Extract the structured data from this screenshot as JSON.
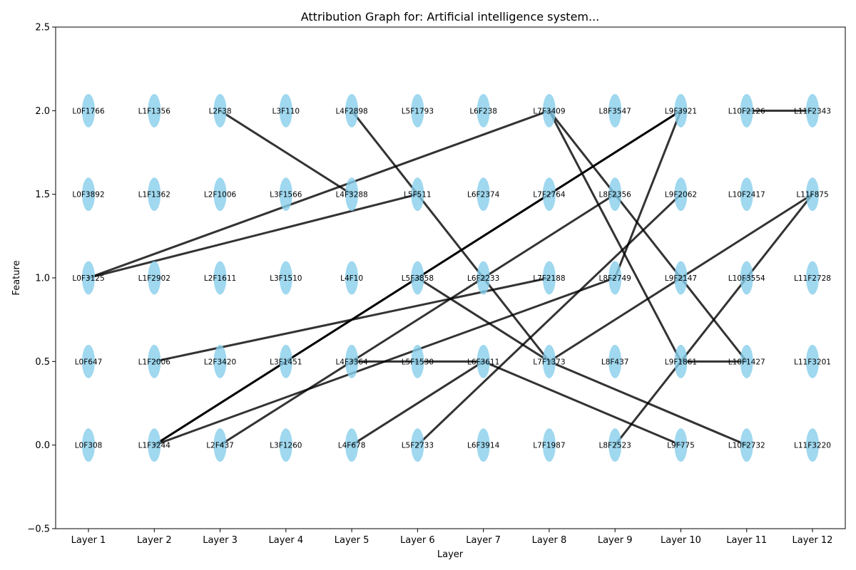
{
  "chart_data": {
    "type": "scatter",
    "title": "Attribution Graph for: Artificial intelligence system...",
    "xlabel": "Layer",
    "ylabel": "Feature",
    "categories": [
      "Layer 1",
      "Layer 2",
      "Layer 3",
      "Layer 4",
      "Layer 5",
      "Layer 6",
      "Layer 7",
      "Layer 8",
      "Layer 9",
      "Layer 10",
      "Layer 11",
      "Layer 12"
    ],
    "ylim": [
      -0.5,
      2.5
    ],
    "yticks": [
      "−0.5",
      "0.0",
      "0.5",
      "1.0",
      "1.5",
      "2.0",
      "2.5"
    ],
    "ytick_values": [
      -0.5,
      0.0,
      0.5,
      1.0,
      1.5,
      2.0,
      2.5
    ],
    "grid": false,
    "node_color": "#87ceeb",
    "edge_color": "#000000",
    "nodes": [
      {
        "layer": 1,
        "y": 2.0,
        "label": "L0F1766"
      },
      {
        "layer": 1,
        "y": 1.5,
        "label": "L0F3892"
      },
      {
        "layer": 1,
        "y": 1.0,
        "label": "L0F3125"
      },
      {
        "layer": 1,
        "y": 0.5,
        "label": "L0F647"
      },
      {
        "layer": 1,
        "y": 0.0,
        "label": "L0F308"
      },
      {
        "layer": 2,
        "y": 2.0,
        "label": "L1F1356"
      },
      {
        "layer": 2,
        "y": 1.5,
        "label": "L1F1362"
      },
      {
        "layer": 2,
        "y": 1.0,
        "label": "L1F2902"
      },
      {
        "layer": 2,
        "y": 0.5,
        "label": "L1F2006"
      },
      {
        "layer": 2,
        "y": 0.0,
        "label": "L1F3244"
      },
      {
        "layer": 3,
        "y": 2.0,
        "label": "L2F38"
      },
      {
        "layer": 3,
        "y": 1.5,
        "label": "L2F1006"
      },
      {
        "layer": 3,
        "y": 1.0,
        "label": "L2F1611"
      },
      {
        "layer": 3,
        "y": 0.5,
        "label": "L2F3420"
      },
      {
        "layer": 3,
        "y": 0.0,
        "label": "L2F437"
      },
      {
        "layer": 4,
        "y": 2.0,
        "label": "L3F110"
      },
      {
        "layer": 4,
        "y": 1.5,
        "label": "L3F1566"
      },
      {
        "layer": 4,
        "y": 1.0,
        "label": "L3F1510"
      },
      {
        "layer": 4,
        "y": 0.5,
        "label": "L3F1451"
      },
      {
        "layer": 4,
        "y": 0.0,
        "label": "L3F1260"
      },
      {
        "layer": 5,
        "y": 2.0,
        "label": "L4F2898"
      },
      {
        "layer": 5,
        "y": 1.5,
        "label": "L4F3288"
      },
      {
        "layer": 5,
        "y": 1.0,
        "label": "L4F10"
      },
      {
        "layer": 5,
        "y": 0.5,
        "label": "L4F3364"
      },
      {
        "layer": 5,
        "y": 0.0,
        "label": "L4F678"
      },
      {
        "layer": 6,
        "y": 2.0,
        "label": "L5F1793"
      },
      {
        "layer": 6,
        "y": 1.5,
        "label": "L5F511"
      },
      {
        "layer": 6,
        "y": 1.0,
        "label": "L5F3858"
      },
      {
        "layer": 6,
        "y": 0.5,
        "label": "L5F1530"
      },
      {
        "layer": 6,
        "y": 0.0,
        "label": "L5F2733"
      },
      {
        "layer": 7,
        "y": 2.0,
        "label": "L6F238"
      },
      {
        "layer": 7,
        "y": 1.5,
        "label": "L6F2374"
      },
      {
        "layer": 7,
        "y": 1.0,
        "label": "L6F2233"
      },
      {
        "layer": 7,
        "y": 0.5,
        "label": "L6F3611"
      },
      {
        "layer": 7,
        "y": 0.0,
        "label": "L6F3914"
      },
      {
        "layer": 8,
        "y": 2.0,
        "label": "L7F3409"
      },
      {
        "layer": 8,
        "y": 1.5,
        "label": "L7F2764"
      },
      {
        "layer": 8,
        "y": 1.0,
        "label": "L7F2188"
      },
      {
        "layer": 8,
        "y": 0.5,
        "label": "L7F1373"
      },
      {
        "layer": 8,
        "y": 0.0,
        "label": "L7F1987"
      },
      {
        "layer": 9,
        "y": 2.0,
        "label": "L8F3547"
      },
      {
        "layer": 9,
        "y": 1.5,
        "label": "L8F2356"
      },
      {
        "layer": 9,
        "y": 1.0,
        "label": "L8F2749"
      },
      {
        "layer": 9,
        "y": 0.5,
        "label": "L8F437"
      },
      {
        "layer": 9,
        "y": 0.0,
        "label": "L8F2523"
      },
      {
        "layer": 10,
        "y": 2.0,
        "label": "L9F3921"
      },
      {
        "layer": 10,
        "y": 1.5,
        "label": "L9F2062"
      },
      {
        "layer": 10,
        "y": 1.0,
        "label": "L9F2147"
      },
      {
        "layer": 10,
        "y": 0.5,
        "label": "L9F1861"
      },
      {
        "layer": 10,
        "y": 0.0,
        "label": "L9F775"
      },
      {
        "layer": 11,
        "y": 2.0,
        "label": "L10F2126"
      },
      {
        "layer": 11,
        "y": 1.5,
        "label": "L10F2417"
      },
      {
        "layer": 11,
        "y": 1.0,
        "label": "L10F3554"
      },
      {
        "layer": 11,
        "y": 0.5,
        "label": "L10F1427"
      },
      {
        "layer": 11,
        "y": 0.0,
        "label": "L10F2732"
      },
      {
        "layer": 12,
        "y": 2.0,
        "label": "L11F2343"
      },
      {
        "layer": 12,
        "y": 1.5,
        "label": "L11F875"
      },
      {
        "layer": 12,
        "y": 1.0,
        "label": "L11F2728"
      },
      {
        "layer": 12,
        "y": 0.5,
        "label": "L11F3201"
      },
      {
        "layer": 12,
        "y": 0.0,
        "label": "L11F3220"
      }
    ],
    "edges": [
      {
        "from": [
          1,
          1.0
        ],
        "to": [
          8,
          2.0
        ],
        "w": 0.8
      },
      {
        "from": [
          1,
          1.0
        ],
        "to": [
          6,
          1.5
        ],
        "w": 0.8
      },
      {
        "from": [
          2,
          0.5
        ],
        "to": [
          8,
          1.0
        ],
        "w": 0.8
      },
      {
        "from": [
          2,
          0.0
        ],
        "to": [
          10,
          2.0
        ],
        "w": 1.0
      },
      {
        "from": [
          2,
          0.0
        ],
        "to": [
          9,
          1.0
        ],
        "w": 0.8
      },
      {
        "from": [
          3,
          2.0
        ],
        "to": [
          5,
          1.5
        ],
        "w": 0.8
      },
      {
        "from": [
          3,
          0.0
        ],
        "to": [
          9,
          1.5
        ],
        "w": 0.8
      },
      {
        "from": [
          5,
          2.0
        ],
        "to": [
          8,
          0.5
        ],
        "w": 0.8
      },
      {
        "from": [
          5,
          0.5
        ],
        "to": [
          7,
          0.5
        ],
        "w": 0.8
      },
      {
        "from": [
          5,
          0.0
        ],
        "to": [
          7,
          0.5
        ],
        "w": 0.8
      },
      {
        "from": [
          6,
          1.0
        ],
        "to": [
          8,
          0.5
        ],
        "w": 0.8
      },
      {
        "from": [
          6,
          0.0
        ],
        "to": [
          10,
          1.5
        ],
        "w": 0.8
      },
      {
        "from": [
          7,
          0.5
        ],
        "to": [
          10,
          0.0
        ],
        "w": 0.8
      },
      {
        "from": [
          8,
          2.0
        ],
        "to": [
          10,
          0.5
        ],
        "w": 0.8
      },
      {
        "from": [
          8,
          2.0
        ],
        "to": [
          11,
          0.5
        ],
        "w": 0.8
      },
      {
        "from": [
          8,
          0.5
        ],
        "to": [
          11,
          0.0
        ],
        "w": 0.8
      },
      {
        "from": [
          8,
          0.5
        ],
        "to": [
          12,
          1.5
        ],
        "w": 0.8
      },
      {
        "from": [
          9,
          1.0
        ],
        "to": [
          10,
          2.0
        ],
        "w": 0.8
      },
      {
        "from": [
          9,
          0.0
        ],
        "to": [
          12,
          1.5
        ],
        "w": 0.8
      },
      {
        "from": [
          10,
          0.5
        ],
        "to": [
          11,
          0.5
        ],
        "w": 0.8
      },
      {
        "from": [
          11,
          2.0
        ],
        "to": [
          12,
          2.0
        ],
        "w": 0.8
      }
    ]
  }
}
